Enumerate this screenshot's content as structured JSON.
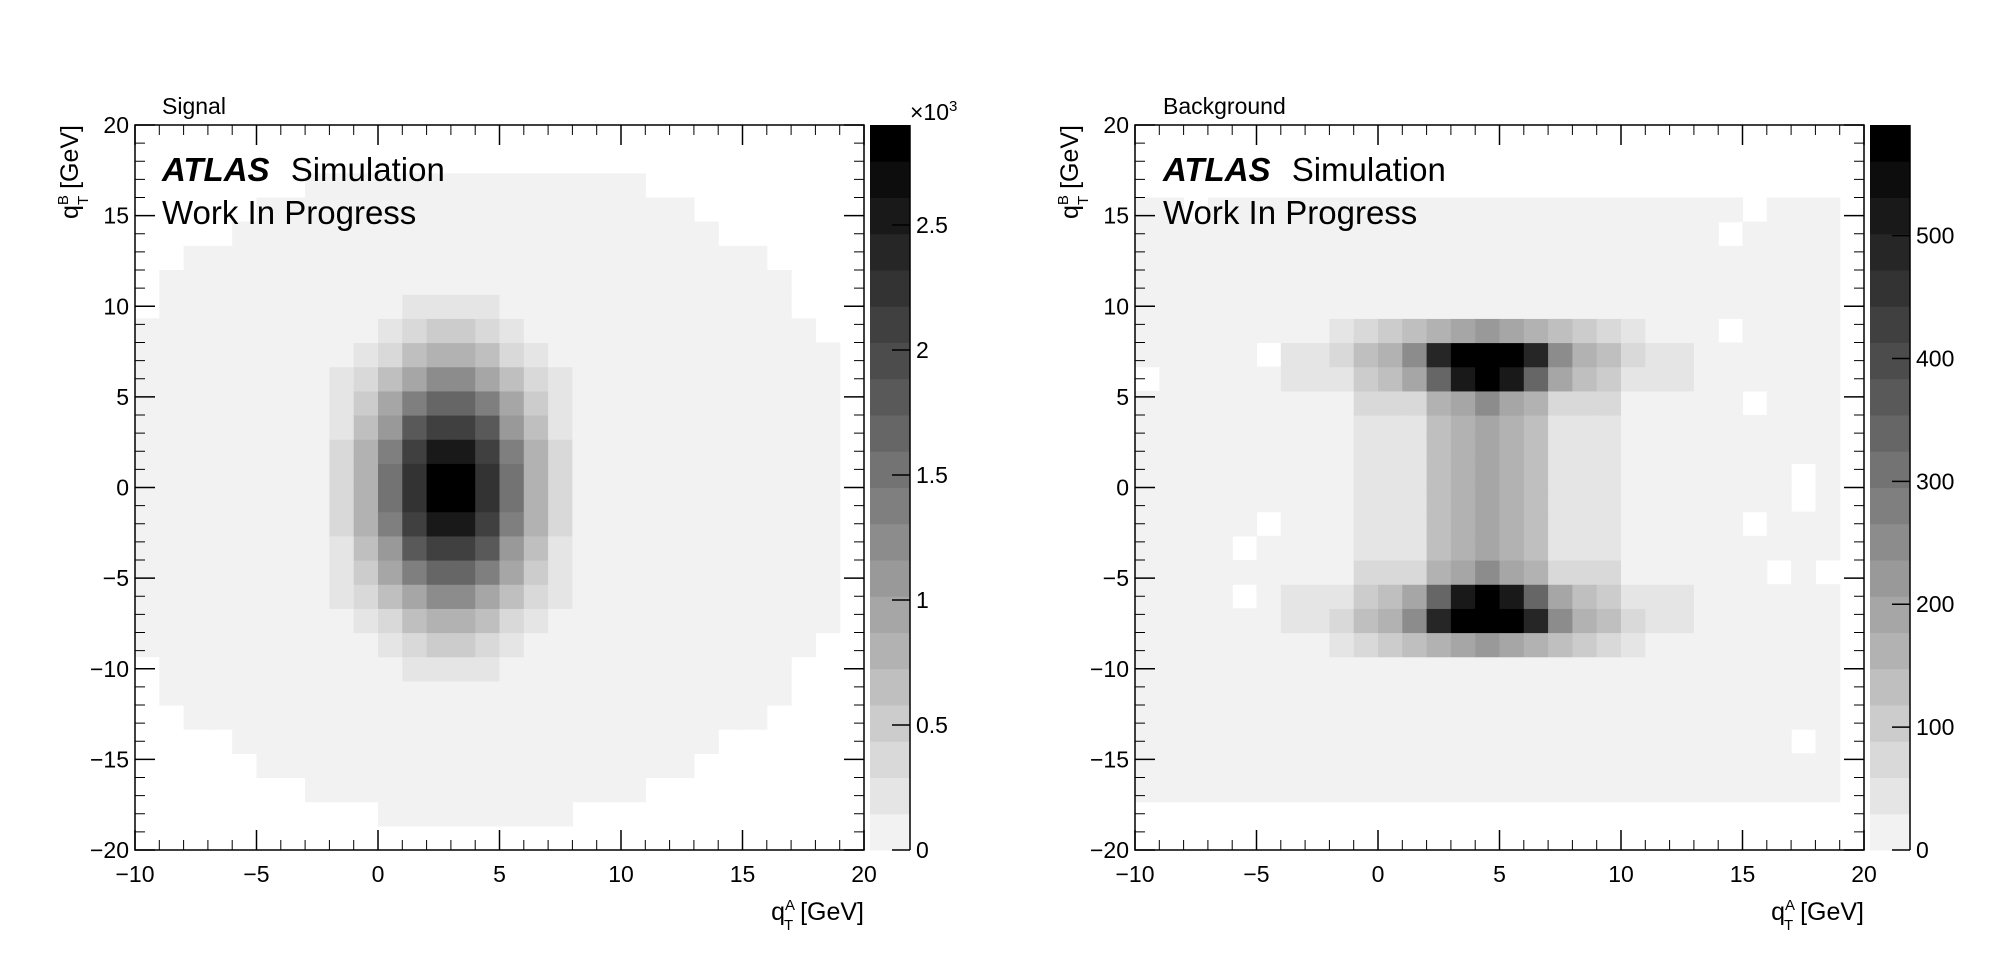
{
  "chart_data": [
    {
      "type": "heatmap",
      "title": "Signal",
      "atlas_label": "ATLAS",
      "atlas_sublabel": "Simulation",
      "status_label": "Work In Progress",
      "xlabel": "q_T^A [GeV]",
      "ylabel": "q_T^B [GeV]",
      "xlim": [
        -10,
        20
      ],
      "ylim": [
        -20,
        20
      ],
      "x_ticks": [
        "−10",
        "−5",
        "0",
        "5",
        "10",
        "15",
        "20"
      ],
      "y_ticks": [
        "−20",
        "−15",
        "−10",
        "−5",
        "0",
        "5",
        "10",
        "15",
        "20"
      ],
      "colorbar": {
        "range": [
          0,
          2900
        ],
        "multiplier_label": "×10",
        "multiplier_exponent": "3",
        "ticks": [
          0,
          500,
          1000,
          1500,
          2000,
          2500
        ],
        "tick_labels": [
          "0",
          "0.5",
          "1",
          "1.5",
          "2",
          "2.5"
        ],
        "colormap": "grayscale, white to black"
      },
      "shape": "elliptical peak centered near q_T^A = 3 GeV, q_T^B = 0 GeV",
      "peak": {
        "x": 3,
        "y": 0,
        "value": 2900,
        "sigma_x": 2.2,
        "sigma_y": 4.5
      },
      "nonzero_region": {
        "x_range": [
          -10,
          19
        ],
        "y_range": [
          -19,
          17
        ]
      }
    },
    {
      "type": "heatmap",
      "title": "Background",
      "atlas_label": "ATLAS",
      "atlas_sublabel": "Simulation",
      "status_label": "Work In Progress",
      "xlabel": "q_T^A [GeV]",
      "ylabel": "q_T^B [GeV]",
      "xlim": [
        -10,
        20
      ],
      "ylim": [
        -20,
        20
      ],
      "x_ticks": [
        "−10",
        "−5",
        "0",
        "5",
        "10",
        "15",
        "20"
      ],
      "y_ticks": [
        "−20",
        "−15",
        "−10",
        "−5",
        "0",
        "5",
        "10",
        "15",
        "20"
      ],
      "colorbar": {
        "range": [
          0,
          590
        ],
        "ticks": [
          0,
          100,
          200,
          300,
          400,
          500
        ],
        "tick_labels": [
          "0",
          "100",
          "200",
          "300",
          "400",
          "500"
        ],
        "colormap": "grayscale, white to black"
      },
      "shape": "vertical band around q_T^A = 3 to 7 GeV with hot spots near q_T^B = +7 and -7 GeV",
      "hot_spots": [
        {
          "x": 4.5,
          "y": 7,
          "value": 590
        },
        {
          "x": 4.5,
          "y": -7,
          "value": 590
        }
      ],
      "nonzero_region": {
        "x_range": [
          -10,
          19
        ],
        "y_range": [
          -17,
          16
        ]
      }
    }
  ]
}
